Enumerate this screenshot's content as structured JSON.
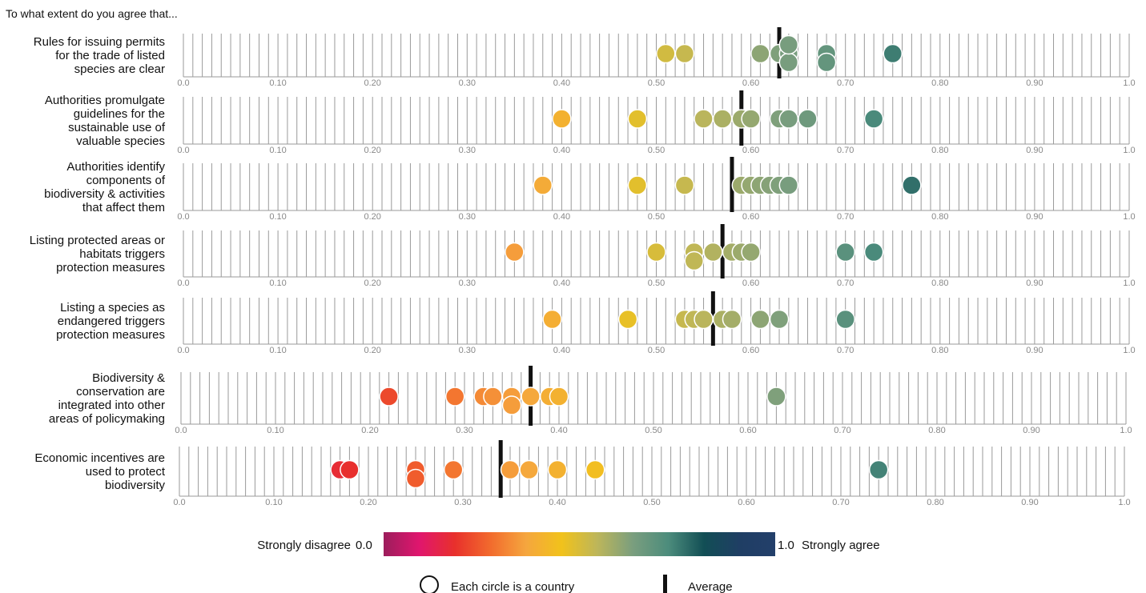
{
  "header": {
    "question": "To what extent do you agree that..."
  },
  "chart_data": {
    "type": "strip-plot",
    "x_range": [
      0.0,
      1.0
    ],
    "tick_labels": [
      "0.0",
      "0.10",
      "0.20",
      "0.30",
      "0.40",
      "0.50",
      "0.60",
      "0.70",
      "0.80",
      "0.90",
      "1.0"
    ],
    "rows": [
      {
        "label": [
          "Rules for issuing permits",
          "for the trade of listed",
          "species are clear"
        ],
        "average": 0.63,
        "values": [
          0.51,
          0.53,
          0.61,
          0.63,
          0.64,
          0.64,
          0.64,
          0.68,
          0.68,
          0.75
        ]
      },
      {
        "label": [
          "Authorities promulgate",
          "guidelines for the",
          "sustainable use of",
          "valuable species"
        ],
        "average": 0.59,
        "values": [
          0.4,
          0.48,
          0.55,
          0.57,
          0.59,
          0.6,
          0.63,
          0.64,
          0.66,
          0.73
        ]
      },
      {
        "label": [
          "Authorities identify",
          "components of",
          "biodiversity & activities",
          "that affect them"
        ],
        "average": 0.58,
        "values": [
          0.38,
          0.48,
          0.53,
          0.59,
          0.6,
          0.61,
          0.62,
          0.63,
          0.64,
          0.77
        ]
      },
      {
        "label": [
          "Listing protected areas or",
          "habitats triggers",
          "protection measures"
        ],
        "average": 0.57,
        "values": [
          0.35,
          0.5,
          0.54,
          0.54,
          0.56,
          0.58,
          0.59,
          0.6,
          0.7,
          0.73
        ]
      },
      {
        "label": [
          "Listing a species as",
          "endangered triggers",
          "protection measures"
        ],
        "average": 0.56,
        "values": [
          0.39,
          0.47,
          0.53,
          0.54,
          0.55,
          0.57,
          0.58,
          0.61,
          0.63,
          0.7
        ]
      },
      {
        "label": [
          "Biodiversity &",
          "conservation are",
          "integrated into other",
          "areas of policymaking"
        ],
        "average": 0.37,
        "values": [
          0.22,
          0.29,
          0.32,
          0.33,
          0.35,
          0.35,
          0.37,
          0.39,
          0.4,
          0.63
        ]
      },
      {
        "label": [
          "Economic incentives are",
          "used to protect",
          "biodiversity"
        ],
        "average": 0.34,
        "values": [
          0.17,
          0.18,
          0.25,
          0.25,
          0.29,
          0.35,
          0.37,
          0.4,
          0.44,
          0.74
        ]
      }
    ],
    "color_scale": {
      "min_label": "Strongly disagree",
      "min_value": "0.0",
      "max_value": "1.0",
      "max_label": "Strongly agree",
      "stops": [
        "#9c1d5c",
        "#e0166e",
        "#e8302c",
        "#f26b2d",
        "#f5a63e",
        "#f1c21b",
        "#bdb65a",
        "#7a9e7e",
        "#4c8c7c",
        "#124e55",
        "#1f3e64",
        "#233f6a"
      ]
    },
    "legend": {
      "circle_label": "Each circle is a country",
      "average_label": "Average"
    }
  }
}
